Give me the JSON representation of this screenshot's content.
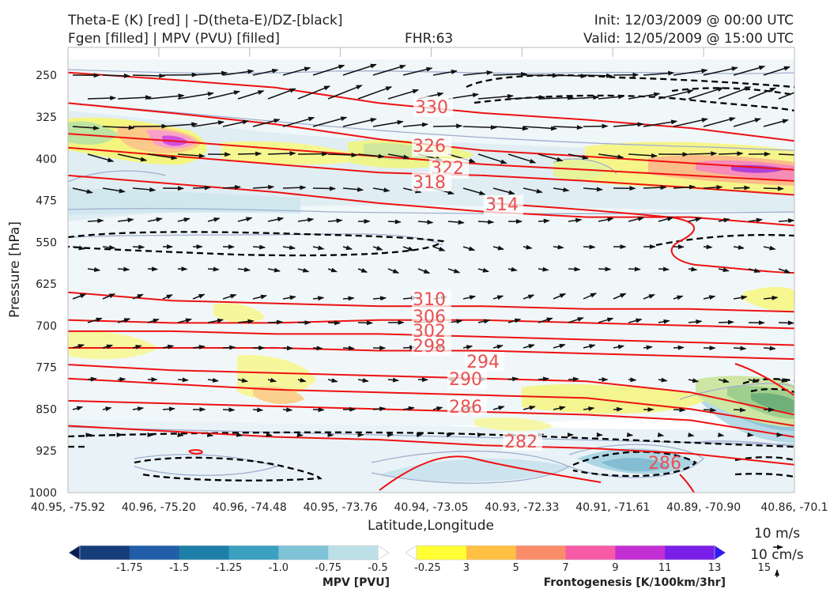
{
  "header": {
    "title_line1": "Theta-E (K) [red] | -D(theta-E)/DZ-[black]",
    "title_line2": "Fgen [filled] | MPV (PVU) [filled]",
    "fhr": "FHR:63",
    "init": "Init: 12/03/2009 @ 00:00 UTC",
    "valid": "Valid: 12/05/2009 @ 15:00 UTC"
  },
  "axes": {
    "ylabel": "Pressure [hPa]",
    "xlabel": "Latitude,Longitude"
  },
  "chart_data": {
    "type": "heatmap",
    "y_scale": "linear-inverted",
    "ylim": [
      1000,
      200
    ],
    "yticks": [
      250,
      325,
      400,
      475,
      550,
      625,
      700,
      775,
      850,
      925,
      1000
    ],
    "x_ticks": [
      "40.95, -75.92",
      "40.96, -75.20",
      "40.96, -74.48",
      "40.95, -73.76",
      "40.94, -73.05",
      "40.93, -72.33",
      "40.91, -71.61",
      "40.89, -70.90",
      "40.86, -70.1"
    ],
    "theta_e_contours": [
      {
        "value": 330,
        "p": [
          245,
          258,
          272,
          300,
          318,
          330,
          345,
          368
        ]
      },
      {
        "value": 326,
        "p": [
          300,
          318,
          338,
          365,
          385,
          396,
          408,
          420
        ]
      },
      {
        "value": 322,
        "p": [
          355,
          368,
          382,
          396,
          410,
          420,
          430,
          440
        ]
      },
      {
        "value": 318,
        "p": [
          380,
          395,
          410,
          425,
          430,
          440,
          452,
          465
        ]
      },
      {
        "value": 314,
        "p": [
          430,
          445,
          460,
          480,
          495,
          505,
          505,
          520
        ]
      },
      {
        "value": 310,
        "p": [
          640,
          655,
          660,
          665,
          665,
          670,
          670,
          675
        ]
      },
      {
        "value": 306,
        "p": [
          690,
          695,
          695,
          690,
          690,
          695,
          700,
          705
        ]
      },
      {
        "value": 302,
        "p": [
          710,
          710,
          715,
          715,
          720,
          725,
          730,
          735
        ]
      },
      {
        "value": 298,
        "p": [
          740,
          740,
          740,
          745,
          745,
          750,
          755,
          760
        ]
      },
      {
        "value": 294,
        "p": [
          770,
          780,
          785,
          790,
          795,
          800,
          820,
          860
        ]
      },
      {
        "value": 290,
        "p": [
          795,
          805,
          815,
          820,
          825,
          830,
          850,
          880
        ]
      },
      {
        "value": 286,
        "p": [
          835,
          840,
          845,
          850,
          855,
          860,
          870,
          900
        ]
      },
      {
        "value": 282,
        "p": [
          880,
          890,
          900,
          905,
          915,
          920,
          930,
          950
        ]
      },
      {
        "value": 286,
        "p": [
          950,
          955,
          965,
          975,
          985,
          990,
          985,
          980
        ]
      }
    ],
    "wind_reference": {
      "horizontal": "10 m/s",
      "vertical": "10 cm/s"
    }
  },
  "colorbars": {
    "mpv": {
      "label": "MPV [PVU]",
      "ticks": [
        "-1.75",
        "-1.5",
        "-1.25",
        "-1.0",
        "-0.75",
        "-0.5",
        "-0.25"
      ],
      "colors": [
        "#081d58",
        "#163d7a",
        "#225ea8",
        "#1d7fa8",
        "#3ca0c0",
        "#7ec2d6",
        "#bddfe8",
        "#ffffff"
      ]
    },
    "fgen": {
      "label": "Frontogenesis [K/100km/3hr]",
      "ticks": [
        "3",
        "5",
        "7",
        "9",
        "11",
        "13",
        "15"
      ],
      "colors": [
        "#ffffff",
        "#ffff33",
        "#ffc044",
        "#fb8c6a",
        "#f75ba6",
        "#c230d4",
        "#7a1fe8",
        "#2f1cf5"
      ]
    }
  },
  "contour_labels": [
    "330",
    "326",
    "322",
    "318",
    "314",
    "310",
    "306",
    "302",
    "298",
    "294",
    "290",
    "286",
    "282",
    "286"
  ]
}
